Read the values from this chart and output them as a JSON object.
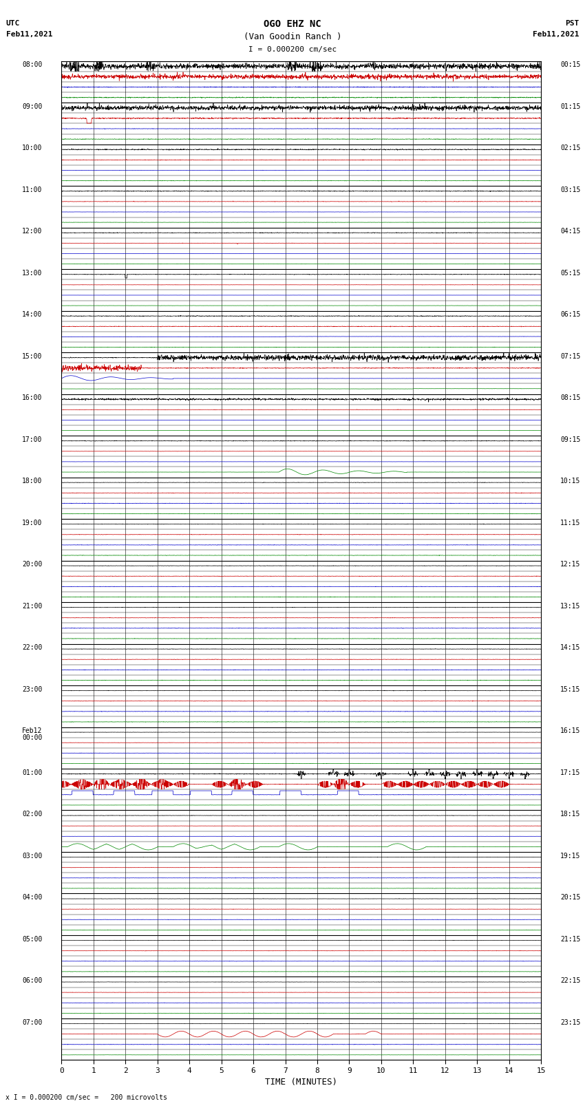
{
  "title_line1": "OGO EHZ NC",
  "title_line2": "(Van Goodin Ranch )",
  "title_scale": "I = 0.000200 cm/sec",
  "left_top_label1": "UTC",
  "left_top_label2": "Feb11,2021",
  "right_top_label1": "PST",
  "right_top_label2": "Feb11,2021",
  "bottom_label": "TIME (MINUTES)",
  "bottom_note": "x I = 0.000200 cm/sec =   200 microvolts",
  "fig_width": 8.5,
  "fig_height": 16.13,
  "bg_color": "#ffffff",
  "grid_color": "#aaaaaa",
  "colors": {
    "black": "#000000",
    "red": "#cc0000",
    "blue": "#0000cc",
    "green": "#008800"
  },
  "utc_times_list": [
    "08:00",
    "",
    "",
    "",
    "09:00",
    "",
    "",
    "",
    "10:00",
    "",
    "",
    "",
    "11:00",
    "",
    "",
    "",
    "12:00",
    "",
    "",
    "",
    "13:00",
    "",
    "",
    "",
    "14:00",
    "",
    "",
    "",
    "15:00",
    "",
    "",
    "",
    "16:00",
    "",
    "",
    "",
    "17:00",
    "",
    "",
    "",
    "18:00",
    "",
    "",
    "",
    "19:00",
    "",
    "",
    "",
    "20:00",
    "",
    "",
    "",
    "21:00",
    "",
    "",
    "",
    "22:00",
    "",
    "",
    "",
    "23:00",
    "",
    "",
    "",
    "Feb12\n00:00",
    "",
    "",
    "",
    "01:00",
    "",
    "",
    "",
    "02:00",
    "",
    "",
    "",
    "03:00",
    "",
    "",
    "",
    "04:00",
    "",
    "",
    "",
    "05:00",
    "",
    "",
    "",
    "06:00",
    "",
    "",
    "",
    "07:00",
    "",
    "",
    ""
  ],
  "pst_times_list": [
    "00:15",
    "",
    "",
    "",
    "01:15",
    "",
    "",
    "",
    "02:15",
    "",
    "",
    "",
    "03:15",
    "",
    "",
    "",
    "04:15",
    "",
    "",
    "",
    "05:15",
    "",
    "",
    "",
    "06:15",
    "",
    "",
    "",
    "07:15",
    "",
    "",
    "",
    "08:15",
    "",
    "",
    "",
    "09:15",
    "",
    "",
    "",
    "10:15",
    "",
    "",
    "",
    "11:15",
    "",
    "",
    "",
    "12:15",
    "",
    "",
    "",
    "13:15",
    "",
    "",
    "",
    "14:15",
    "",
    "",
    "",
    "15:15",
    "",
    "",
    "",
    "16:15",
    "",
    "",
    "",
    "17:15",
    "",
    "",
    "",
    "18:15",
    "",
    "",
    "",
    "19:15",
    "",
    "",
    "",
    "20:15",
    "",
    "",
    "",
    "21:15",
    "",
    "",
    "",
    "22:15",
    "",
    "",
    "",
    "23:15",
    "",
    "",
    ""
  ],
  "n_rows": 96
}
